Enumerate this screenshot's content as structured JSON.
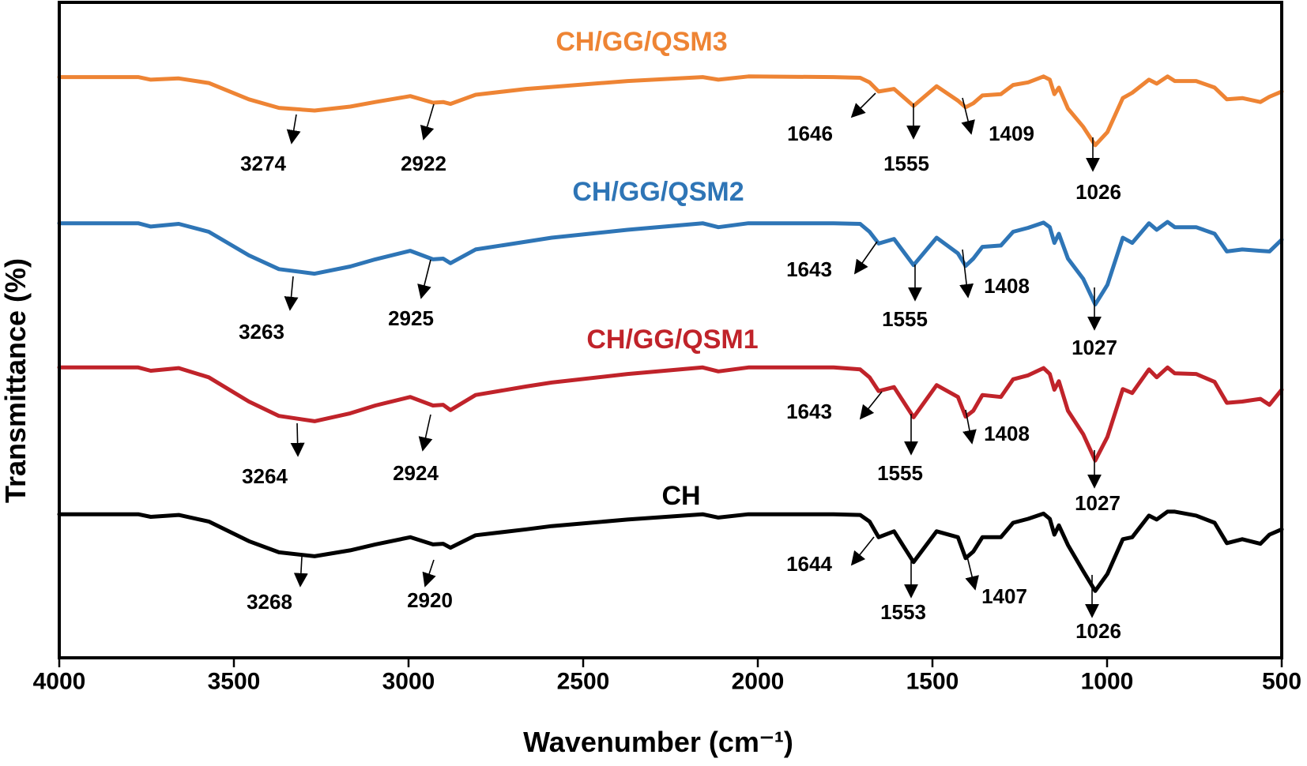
{
  "chart_data": {
    "type": "line",
    "title": "",
    "xlabel": "Wavenumber (cm⁻¹)",
    "ylabel": "Transmittance (%)",
    "xlim": [
      4000,
      500
    ],
    "x_reversed": true,
    "ylim": [
      0,
      100
    ],
    "y_ticks_shown": false,
    "grid": false,
    "legend": "none (series labelled directly above each curve)",
    "x_ticks": [
      4000,
      3500,
      3000,
      2500,
      2000,
      1500,
      1000,
      500
    ],
    "x_tick_labels": [
      "4000",
      "3500",
      "3000",
      "2500",
      "2000",
      "1500",
      "1000",
      "500"
    ],
    "x": [
      4000,
      3774,
      3738,
      3658,
      3572,
      3457,
      3371,
      3269,
      3167,
      3095,
      2995,
      2930,
      2901,
      2880,
      2808,
      2663,
      2590,
      2373,
      2158,
      2113,
      2027,
      1783,
      1707,
      1680,
      1654,
      1610,
      1554,
      1488,
      1427,
      1405,
      1383,
      1357,
      1304,
      1269,
      1226,
      1182,
      1164,
      1151,
      1138,
      1112,
      1068,
      1034,
      999,
      955,
      928,
      880,
      858,
      827,
      806,
      745,
      692,
      657,
      613,
      561,
      535,
      500
    ],
    "series": [
      {
        "name": "CH/GG/QSM3",
        "color": "#EE8434",
        "values": [
          88.6,
          88.6,
          88.2,
          88.4,
          87.7,
          85.2,
          83.9,
          83.5,
          84.1,
          84.8,
          85.7,
          84.7,
          84.8,
          84.5,
          85.9,
          86.8,
          87.1,
          88.0,
          88.6,
          88.2,
          88.7,
          88.6,
          88.5,
          87.8,
          86.4,
          86.8,
          84.2,
          87.2,
          85.0,
          84.0,
          84.6,
          85.8,
          86.0,
          87.4,
          87.8,
          88.7,
          88.2,
          86.0,
          87.0,
          83.8,
          81.0,
          78.2,
          80.2,
          85.4,
          86.2,
          88.2,
          87.6,
          88.7,
          88.0,
          88.0,
          87.0,
          85.2,
          85.4,
          84.8,
          85.6,
          86.4
        ],
        "peaks": [
          "3274",
          "2922",
          "1646",
          "1555",
          "1409",
          "1026"
        ]
      },
      {
        "name": "CH/GG/QSM2",
        "color": "#2E75B6",
        "values": [
          66.3,
          66.3,
          65.8,
          66.2,
          65.0,
          61.4,
          59.3,
          58.6,
          59.7,
          60.8,
          62.1,
          60.8,
          60.9,
          60.2,
          62.3,
          63.5,
          64.1,
          65.3,
          66.3,
          65.7,
          66.3,
          66.3,
          66.2,
          65.0,
          63.2,
          63.9,
          59.9,
          64.1,
          61.7,
          59.8,
          60.9,
          62.7,
          62.9,
          65.0,
          65.6,
          66.4,
          65.7,
          63.3,
          64.7,
          60.9,
          57.8,
          53.9,
          56.9,
          64.1,
          63.3,
          66.3,
          65.3,
          66.5,
          65.7,
          65.7,
          64.7,
          62.0,
          62.3,
          62.1,
          62.0,
          63.8
        ],
        "peaks": [
          "3263",
          "2925",
          "1643",
          "1555",
          "1408",
          "1027"
        ]
      },
      {
        "name": "CH/GG/QSM1",
        "color": "#C0232A",
        "values": [
          44.3,
          44.3,
          43.8,
          44.2,
          42.8,
          39.1,
          36.9,
          36.1,
          37.3,
          38.5,
          39.8,
          38.5,
          38.6,
          37.8,
          40.1,
          41.4,
          42.0,
          43.3,
          44.3,
          43.7,
          44.3,
          44.3,
          44.0,
          42.8,
          40.7,
          41.3,
          36.7,
          41.6,
          39.8,
          36.8,
          37.7,
          40.1,
          39.8,
          42.5,
          43.1,
          44.2,
          43.3,
          40.9,
          42.2,
          37.7,
          34.1,
          30.1,
          33.7,
          41.0,
          40.4,
          44.0,
          42.8,
          44.3,
          43.4,
          43.3,
          42.1,
          38.9,
          39.1,
          39.5,
          38.6,
          40.9
        ],
        "peaks": [
          "3264",
          "2924",
          "1643",
          "1555",
          "1408",
          "1027"
        ]
      },
      {
        "name": "CH",
        "color": "#000000",
        "values": [
          21.9,
          21.9,
          21.5,
          21.8,
          20.8,
          17.8,
          16.1,
          15.5,
          16.4,
          17.3,
          18.4,
          17.3,
          17.4,
          16.8,
          18.7,
          19.6,
          20.1,
          21.1,
          21.9,
          21.4,
          21.9,
          21.9,
          21.8,
          20.8,
          18.4,
          19.3,
          14.6,
          19.3,
          18.4,
          15.2,
          16.2,
          18.4,
          18.4,
          20.6,
          21.2,
          22.0,
          21.2,
          18.8,
          20.2,
          17.2,
          13.2,
          10.2,
          12.8,
          18.1,
          18.4,
          21.7,
          21.1,
          22.3,
          22.3,
          21.7,
          20.6,
          17.5,
          18.1,
          17.4,
          18.8,
          19.6
        ],
        "peaks": [
          "3268",
          "2920",
          "1644",
          "1553",
          "1407",
          "1026"
        ]
      }
    ]
  }
}
